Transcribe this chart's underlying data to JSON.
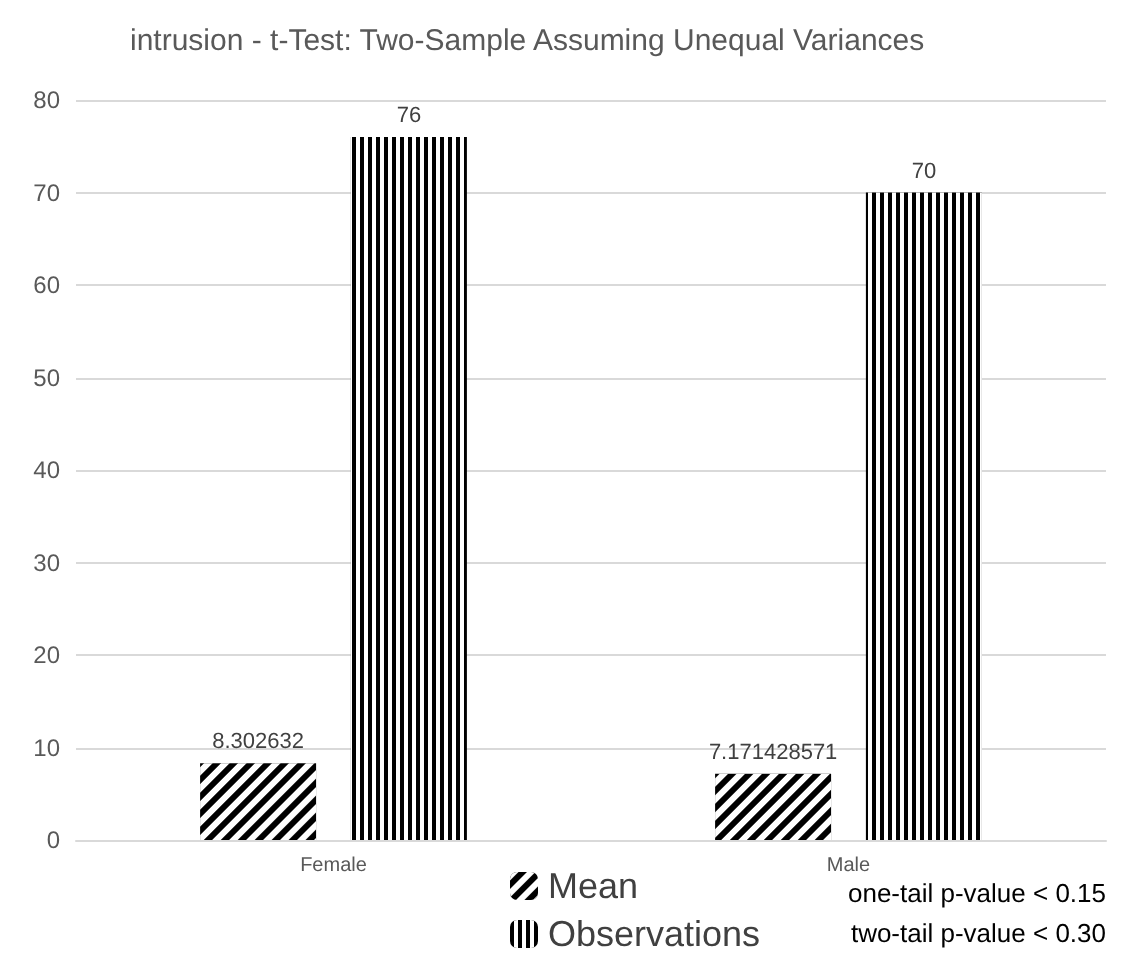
{
  "chart_data": {
    "type": "bar",
    "title": "intrusion - t-Test: Two-Sample Assuming Unequal Variances",
    "categories": [
      "Female",
      "Male"
    ],
    "series": [
      {
        "name": "Mean",
        "color": "#000000",
        "values": [
          8.302632,
          7.171428571
        ]
      },
      {
        "name": "Observations",
        "color": "#000000",
        "values": [
          76,
          70
        ]
      }
    ],
    "ylim": [
      0,
      80
    ],
    "yticks": [
      0,
      10,
      20,
      30,
      40,
      50,
      60,
      70,
      80
    ],
    "grid": "y",
    "legend": "bottom",
    "data_labels": true,
    "annotations": [
      "one-tail p-value < 0.15",
      "two-tail p-value < 0.30"
    ]
  }
}
